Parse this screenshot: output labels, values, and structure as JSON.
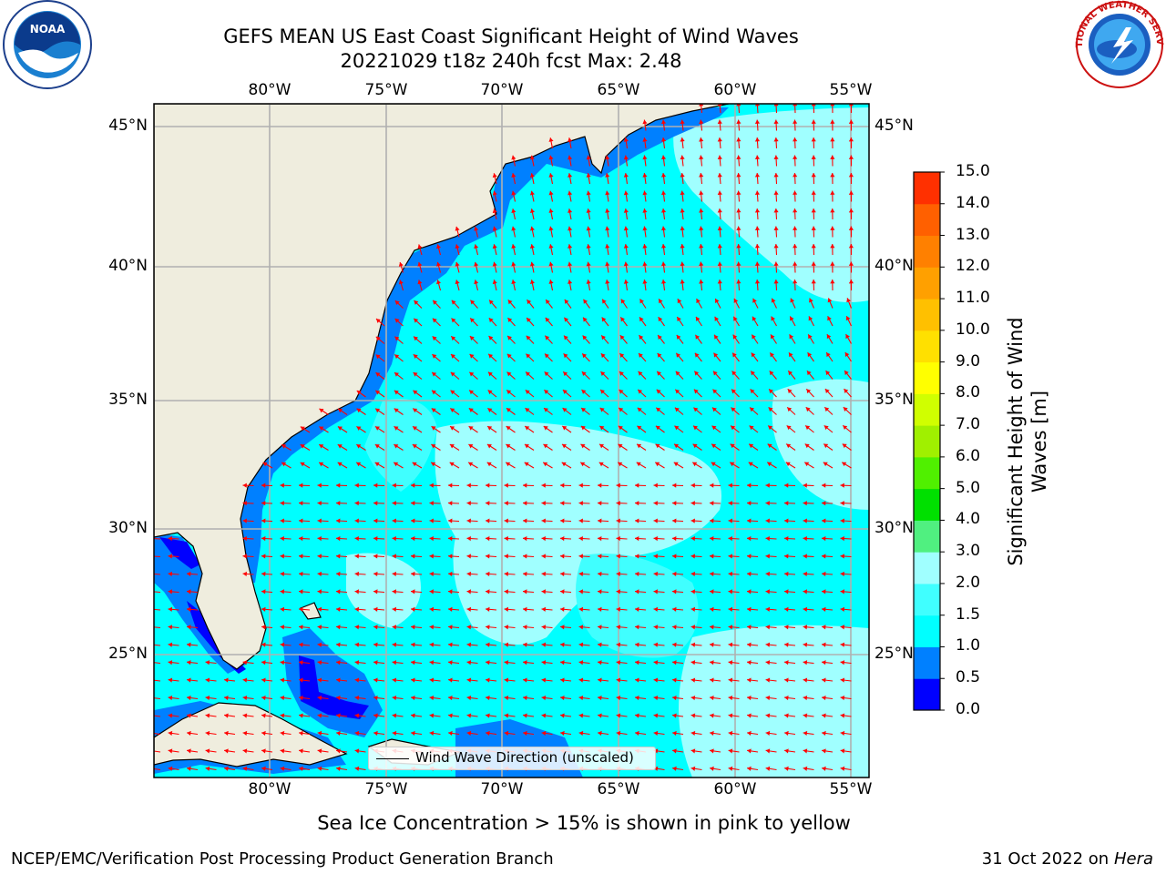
{
  "header": {
    "title_line1": "GEFS MEAN US East Coast Significant Height of Wind Waves",
    "title_line2": "20221029 t18z 240h fcst   Max: 2.48"
  },
  "logos": {
    "left": {
      "text": "NOAA",
      "ring_text": "NATIONAL OCEANIC AND ATMOSPHERIC ADMINISTRATION · U.S. DEPARTMENT OF COMMERCE"
    },
    "right": {
      "ring_text": "NATIONAL WEATHER SERVICE"
    }
  },
  "map": {
    "lon_labels": [
      "80°W",
      "75°W",
      "70°W",
      "65°W",
      "60°W",
      "55°W"
    ],
    "lat_labels": [
      "45°N",
      "40°N",
      "35°N",
      "30°N",
      "25°N"
    ],
    "legend_label": "Wind Wave Direction (unscaled)",
    "arrow_color": "#ff0000",
    "land_color": "#efedde",
    "grid_color": "#b0b0b0"
  },
  "colorbar": {
    "label": "Significant Height of Wind Waves [m]",
    "ticks": [
      "0.0",
      "0.5",
      "1.0",
      "1.5",
      "2.0",
      "3.0",
      "4.0",
      "5.0",
      "6.0",
      "7.0",
      "8.0",
      "9.0",
      "10.0",
      "11.0",
      "12.0",
      "13.0",
      "14.0",
      "15.0"
    ],
    "colors": [
      "#0000ff",
      "#0080ff",
      "#00ffff",
      "#40ffff",
      "#a0ffff",
      "#50f080",
      "#00e000",
      "#50f000",
      "#a0f000",
      "#d0ff00",
      "#ffff00",
      "#ffe000",
      "#ffc000",
      "#ffa000",
      "#ff8000",
      "#ff6000",
      "#ff3000"
    ]
  },
  "footer": {
    "sea_ice_note": "Sea Ice Concentration > 15% is shown in pink to yellow",
    "branch": "NCEP/EMC/Verification Post Processing Product Generation Branch",
    "date": "31 Oct 2022 on ",
    "machine": "Hera"
  }
}
